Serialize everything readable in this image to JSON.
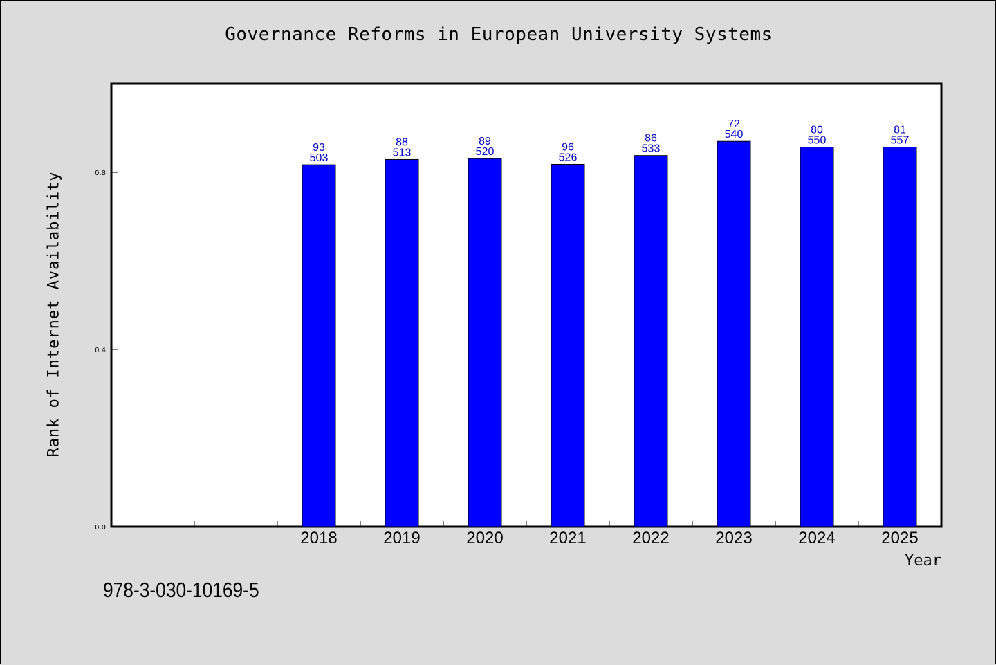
{
  "colors": {
    "background": "#dcdcdc",
    "plot_background": "#ffffff",
    "bar_fill": "#0000ff",
    "data_label": "#0000c8"
  },
  "isbn": "978-3-030-10169-5",
  "chart_data": {
    "type": "bar",
    "title": "Governance Reforms in European University Systems",
    "xlabel": "Year",
    "ylabel": "Rank of Internet Availability",
    "categories": [
      "2018",
      "2019",
      "2020",
      "2021",
      "2022",
      "2023",
      "2024",
      "2025"
    ],
    "values": [
      0.817,
      0.829,
      0.831,
      0.818,
      0.838,
      0.87,
      0.857,
      0.857
    ],
    "label_top": [
      "93",
      "88",
      "89",
      "96",
      "86",
      "72",
      "80",
      "81"
    ],
    "label_bottom": [
      "503",
      "513",
      "520",
      "526",
      "533",
      "540",
      "550",
      "557"
    ],
    "yticks": [
      0.0,
      0.4,
      0.8
    ],
    "ytick_labels": [
      "0.0",
      "0.4",
      "0.8"
    ],
    "ylim": [
      0,
      1.0
    ],
    "grid": false,
    "legend": "none"
  }
}
